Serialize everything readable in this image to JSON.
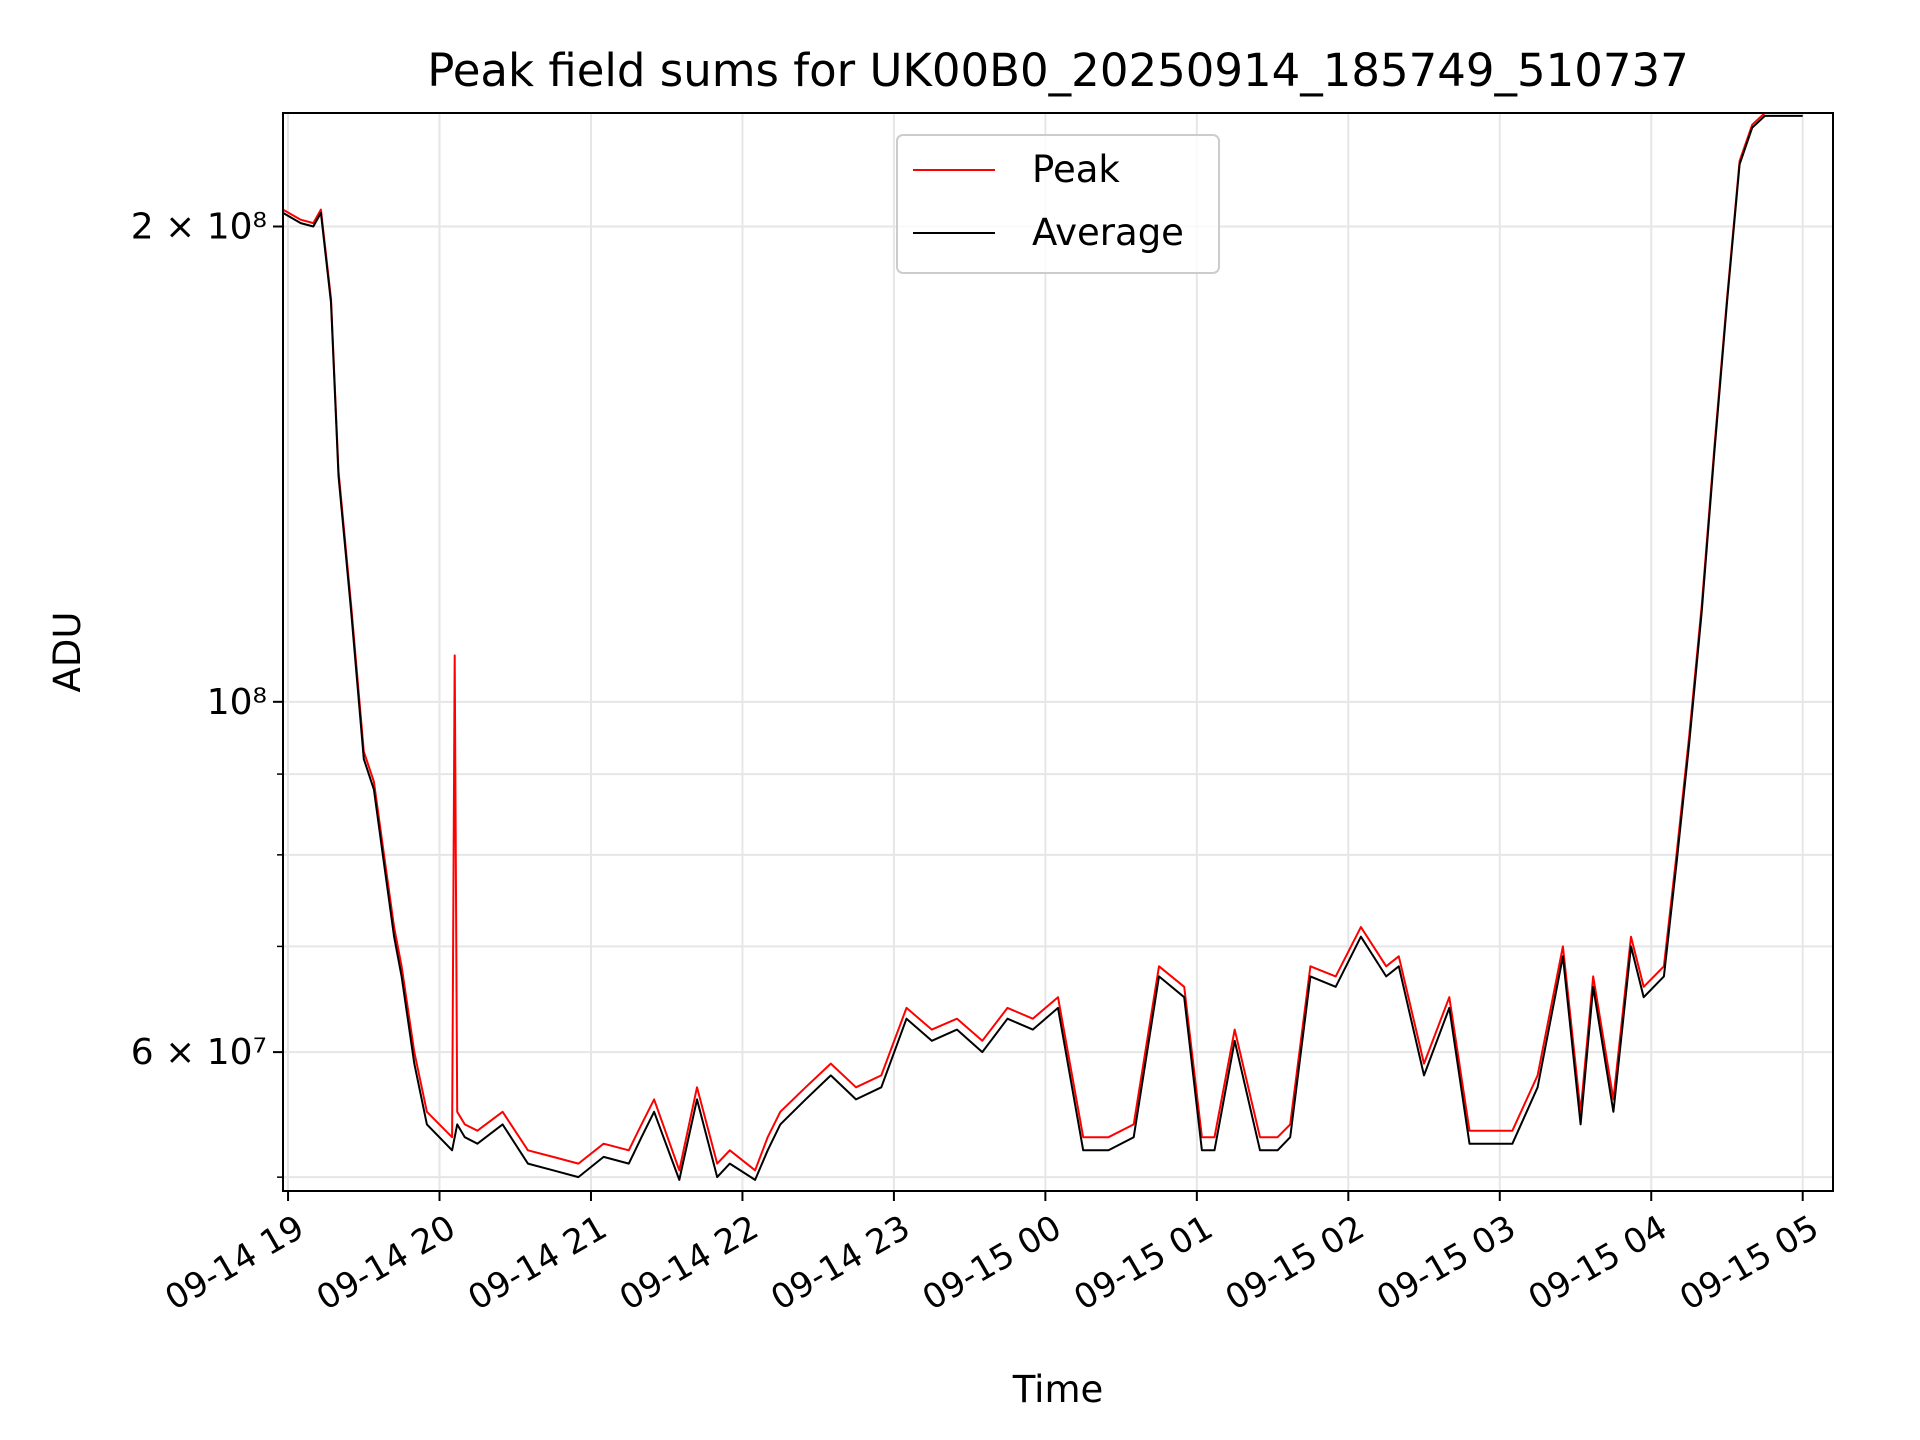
{
  "chart_data": {
    "type": "line",
    "title": "Peak field sums for UK00B0_20250914_185749_510737",
    "xlabel": "Time",
    "ylabel": "ADU",
    "yscale": "log",
    "grid": true,
    "legend": "upper center",
    "xlim": [
      "2025-09-14 18:58",
      "2025-09-15 05:12"
    ],
    "ylim": [
      49000000,
      236000000
    ],
    "x_ticks": [
      "09-14 19",
      "09-14 20",
      "09-14 21",
      "09-14 22",
      "09-14 23",
      "09-15 00",
      "09-15 01",
      "09-15 02",
      "09-15 03",
      "09-15 04",
      "09-15 05"
    ],
    "y_ticks": [
      {
        "value": 200000000,
        "label": "2 × 10⁸"
      },
      {
        "value": 100000000,
        "label": "10⁸"
      },
      {
        "value": 60000000,
        "label": "6 × 10⁷"
      }
    ],
    "y_minor_ticks": [
      50000000,
      70000000,
      80000000,
      90000000
    ],
    "colors": {
      "Peak": "#ff0000",
      "Average": "#000000"
    },
    "series": [
      {
        "name": "Peak",
        "x": [
          "2025-09-14 18:58",
          "2025-09-14 19:05",
          "2025-09-14 19:10",
          "2025-09-14 19:13",
          "2025-09-14 19:17",
          "2025-09-14 19:20",
          "2025-09-14 19:25",
          "2025-09-14 19:30",
          "2025-09-14 19:34",
          "2025-09-14 19:38",
          "2025-09-14 19:42",
          "2025-09-14 19:45",
          "2025-09-14 19:50",
          "2025-09-14 19:55",
          "2025-09-14 20:05",
          "2025-09-14 20:06",
          "2025-09-14 20:07",
          "2025-09-14 20:10",
          "2025-09-14 20:15",
          "2025-09-14 20:25",
          "2025-09-14 20:35",
          "2025-09-14 20:45",
          "2025-09-14 20:55",
          "2025-09-14 21:05",
          "2025-09-14 21:15",
          "2025-09-14 21:20",
          "2025-09-14 21:25",
          "2025-09-14 21:35",
          "2025-09-14 21:42",
          "2025-09-14 21:50",
          "2025-09-14 21:55",
          "2025-09-14 22:05",
          "2025-09-14 22:10",
          "2025-09-14 22:15",
          "2025-09-14 22:25",
          "2025-09-14 22:35",
          "2025-09-14 22:45",
          "2025-09-14 22:55",
          "2025-09-14 23:05",
          "2025-09-14 23:15",
          "2025-09-14 23:25",
          "2025-09-14 23:35",
          "2025-09-14 23:45",
          "2025-09-14 23:55",
          "2025-09-15 00:05",
          "2025-09-15 00:15",
          "2025-09-15 00:25",
          "2025-09-15 00:35",
          "2025-09-15 00:45",
          "2025-09-15 00:55",
          "2025-09-15 01:02",
          "2025-09-15 01:07",
          "2025-09-15 01:15",
          "2025-09-15 01:25",
          "2025-09-15 01:32",
          "2025-09-15 01:37",
          "2025-09-15 01:45",
          "2025-09-15 01:55",
          "2025-09-15 02:05",
          "2025-09-15 02:15",
          "2025-09-15 02:20",
          "2025-09-15 02:30",
          "2025-09-15 02:40",
          "2025-09-15 02:48",
          "2025-09-15 02:55",
          "2025-09-15 03:05",
          "2025-09-15 03:15",
          "2025-09-15 03:25",
          "2025-09-15 03:32",
          "2025-09-15 03:37",
          "2025-09-15 03:45",
          "2025-09-15 03:52",
          "2025-09-15 03:57",
          "2025-09-15 04:05",
          "2025-09-15 04:10",
          "2025-09-15 04:15",
          "2025-09-15 04:20",
          "2025-09-15 04:25",
          "2025-09-15 04:30",
          "2025-09-15 04:35",
          "2025-09-15 04:40",
          "2025-09-15 04:45",
          "2025-09-15 04:50",
          "2025-09-15 04:55",
          "2025-09-15 05:00"
        ],
        "y": [
          205000000,
          202000000,
          201000000,
          205000000,
          180000000,
          140000000,
          115000000,
          93000000,
          89000000,
          80000000,
          72000000,
          68000000,
          60000000,
          55000000,
          53000000,
          107000000,
          55000000,
          54000000,
          53500000,
          55000000,
          52000000,
          51500000,
          51000000,
          52500000,
          52000000,
          54000000,
          56000000,
          50500000,
          57000000,
          51000000,
          52000000,
          50500000,
          53000000,
          55000000,
          57000000,
          59000000,
          57000000,
          58000000,
          64000000,
          62000000,
          63000000,
          61000000,
          64000000,
          63000000,
          65000000,
          53000000,
          53000000,
          54000000,
          68000000,
          66000000,
          53000000,
          53000000,
          62000000,
          53000000,
          53000000,
          54000000,
          68000000,
          67000000,
          72000000,
          68000000,
          69000000,
          59000000,
          65000000,
          53500000,
          53500000,
          53500000,
          58000000,
          70000000,
          55000000,
          67000000,
          56000000,
          71000000,
          66000000,
          68000000,
          80000000,
          95000000,
          115000000,
          145000000,
          180000000,
          220000000,
          232000000,
          236000000,
          236000000,
          236000000,
          236000000
        ]
      },
      {
        "name": "Average",
        "x": [
          "2025-09-14 18:58",
          "2025-09-14 19:05",
          "2025-09-14 19:10",
          "2025-09-14 19:13",
          "2025-09-14 19:17",
          "2025-09-14 19:20",
          "2025-09-14 19:25",
          "2025-09-14 19:30",
          "2025-09-14 19:34",
          "2025-09-14 19:38",
          "2025-09-14 19:42",
          "2025-09-14 19:45",
          "2025-09-14 19:50",
          "2025-09-14 19:55",
          "2025-09-14 20:05",
          "2025-09-14 20:06",
          "2025-09-14 20:07",
          "2025-09-14 20:10",
          "2025-09-14 20:15",
          "2025-09-14 20:25",
          "2025-09-14 20:35",
          "2025-09-14 20:45",
          "2025-09-14 20:55",
          "2025-09-14 21:05",
          "2025-09-14 21:15",
          "2025-09-14 21:20",
          "2025-09-14 21:25",
          "2025-09-14 21:35",
          "2025-09-14 21:42",
          "2025-09-14 21:50",
          "2025-09-14 21:55",
          "2025-09-14 22:05",
          "2025-09-14 22:10",
          "2025-09-14 22:15",
          "2025-09-14 22:25",
          "2025-09-14 22:35",
          "2025-09-14 22:45",
          "2025-09-14 22:55",
          "2025-09-14 23:05",
          "2025-09-14 23:15",
          "2025-09-14 23:25",
          "2025-09-14 23:35",
          "2025-09-14 23:45",
          "2025-09-14 23:55",
          "2025-09-15 00:05",
          "2025-09-15 00:15",
          "2025-09-15 00:25",
          "2025-09-15 00:35",
          "2025-09-15 00:45",
          "2025-09-15 00:55",
          "2025-09-15 01:02",
          "2025-09-15 01:07",
          "2025-09-15 01:15",
          "2025-09-15 01:25",
          "2025-09-15 01:32",
          "2025-09-15 01:37",
          "2025-09-15 01:45",
          "2025-09-15 01:55",
          "2025-09-15 02:05",
          "2025-09-15 02:15",
          "2025-09-15 02:20",
          "2025-09-15 02:30",
          "2025-09-15 02:40",
          "2025-09-15 02:48",
          "2025-09-15 02:55",
          "2025-09-15 03:05",
          "2025-09-15 03:15",
          "2025-09-15 03:25",
          "2025-09-15 03:32",
          "2025-09-15 03:37",
          "2025-09-15 03:45",
          "2025-09-15 03:52",
          "2025-09-15 03:57",
          "2025-09-15 04:05",
          "2025-09-15 04:10",
          "2025-09-15 04:15",
          "2025-09-15 04:20",
          "2025-09-15 04:25",
          "2025-09-15 04:30",
          "2025-09-15 04:35",
          "2025-09-15 04:40",
          "2025-09-15 04:45",
          "2025-09-15 04:50",
          "2025-09-15 04:55",
          "2025-09-15 05:00"
        ],
        "y": [
          204000000,
          201000000,
          200000000,
          204000000,
          179000000,
          139000000,
          114000000,
          92000000,
          88000000,
          79000000,
          71000000,
          67000000,
          59000000,
          54000000,
          52000000,
          53000000,
          54000000,
          53000000,
          52500000,
          54000000,
          51000000,
          50500000,
          50000000,
          51500000,
          51000000,
          53000000,
          55000000,
          49800000,
          56000000,
          50000000,
          51000000,
          49800000,
          52000000,
          54000000,
          56000000,
          58000000,
          56000000,
          57000000,
          63000000,
          61000000,
          62000000,
          60000000,
          63000000,
          62000000,
          64000000,
          52000000,
          52000000,
          53000000,
          67000000,
          65000000,
          52000000,
          52000000,
          61000000,
          52000000,
          52000000,
          53000000,
          67000000,
          66000000,
          71000000,
          67000000,
          68000000,
          58000000,
          64000000,
          52500000,
          52500000,
          52500000,
          57000000,
          69000000,
          54000000,
          66000000,
          55000000,
          70000000,
          65000000,
          67000000,
          79000000,
          94000000,
          114000000,
          144000000,
          179000000,
          219000000,
          231000000,
          235000000,
          235000000,
          235000000,
          235000000
        ]
      }
    ]
  }
}
